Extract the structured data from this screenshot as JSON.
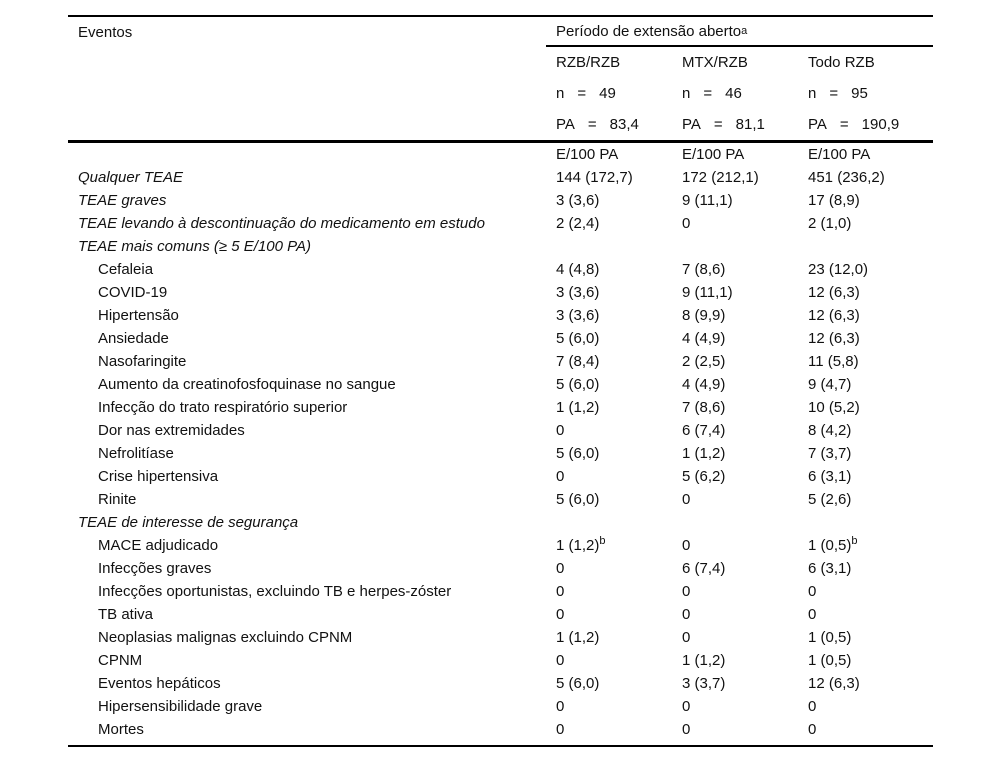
{
  "table": {
    "header": {
      "events_label": "Eventos",
      "period_label": "Período de extensão aberto",
      "period_sup": "a",
      "columns": [
        {
          "name": "RZB/RZB",
          "n": [
            "n",
            "=",
            "49"
          ],
          "pa": [
            "PA",
            "=",
            "83,4"
          ],
          "unit": "E/100 PA"
        },
        {
          "name": "MTX/RZB",
          "n": [
            "n",
            "=",
            "46"
          ],
          "pa": [
            "PA",
            "=",
            "81,1"
          ],
          "unit": "E/100 PA"
        },
        {
          "name": "Todo RZB",
          "n": [
            "n",
            "=",
            "95"
          ],
          "pa": [
            "PA",
            "=",
            "190,9"
          ],
          "unit": "E/100 PA"
        }
      ]
    },
    "rows": [
      {
        "label": "Qualquer TEAE",
        "indent": 0,
        "values": [
          "144 (172,7)",
          "172 (212,1)",
          "451 (236,2)"
        ]
      },
      {
        "label": "TEAE graves",
        "indent": 0,
        "values": [
          "3 (3,6)",
          "9 (11,1)",
          "17 (8,9)"
        ]
      },
      {
        "label": "TEAE levando à descontinuação do medicamento em estudo",
        "indent": 0,
        "values": [
          "2 (2,4)",
          "0",
          "2 (1,0)"
        ]
      },
      {
        "label": "TEAE mais comuns (≥ 5 E/100 PA)",
        "indent": 0,
        "values": [
          "",
          "",
          ""
        ]
      },
      {
        "label": "Cefaleia",
        "indent": 1,
        "values": [
          "4 (4,8)",
          "7 (8,6)",
          "23 (12,0)"
        ]
      },
      {
        "label": "COVID-19",
        "indent": 1,
        "values": [
          "3 (3,6)",
          "9 (11,1)",
          "12 (6,3)"
        ]
      },
      {
        "label": "Hipertensão",
        "indent": 1,
        "values": [
          "3 (3,6)",
          "8 (9,9)",
          "12 (6,3)"
        ]
      },
      {
        "label": "Ansiedade",
        "indent": 1,
        "values": [
          "5 (6,0)",
          "4 (4,9)",
          "12 (6,3)"
        ]
      },
      {
        "label": "Nasofaringite",
        "indent": 1,
        "values": [
          "7 (8,4)",
          "2 (2,5)",
          "11 (5,8)"
        ]
      },
      {
        "label": "Aumento da creatinofosfoquinase no sangue",
        "indent": 1,
        "values": [
          "5 (6,0)",
          "4 (4,9)",
          "9 (4,7)"
        ]
      },
      {
        "label": "Infecção do trato respiratório superior",
        "indent": 1,
        "values": [
          "1 (1,2)",
          "7 (8,6)",
          "10 (5,2)"
        ]
      },
      {
        "label": "Dor nas extremidades",
        "indent": 1,
        "values": [
          "0",
          "6 (7,4)",
          "8 (4,2)"
        ]
      },
      {
        "label": "Nefrolitíase",
        "indent": 1,
        "values": [
          "5 (6,0)",
          "1 (1,2)",
          "7 (3,7)"
        ]
      },
      {
        "label": "Crise hipertensiva",
        "indent": 1,
        "values": [
          "0",
          "5 (6,2)",
          "6 (3,1)"
        ]
      },
      {
        "label": "Rinite",
        "indent": 1,
        "values": [
          "5 (6,0)",
          "0",
          "5 (2,6)"
        ]
      },
      {
        "label": "TEAE de interesse de segurança",
        "indent": 0,
        "values": [
          "",
          "",
          ""
        ]
      },
      {
        "label": "MACE adjudicado",
        "indent": 1,
        "values": [
          {
            "text": "1 (1,2)",
            "sup": "b"
          },
          "0",
          {
            "text": "1 (0,5)",
            "sup": "b"
          }
        ]
      },
      {
        "label": "Infecções graves",
        "indent": 1,
        "values": [
          "0",
          "6 (7,4)",
          "6 (3,1)"
        ]
      },
      {
        "label": "Infecções oportunistas, excluindo TB e herpes-zóster",
        "indent": 1,
        "values": [
          "0",
          "0",
          "0"
        ]
      },
      {
        "label": "TB ativa",
        "indent": 1,
        "values": [
          "0",
          "0",
          "0"
        ]
      },
      {
        "label": "Neoplasias malignas excluindo CPNM",
        "indent": 1,
        "values": [
          "1 (1,2)",
          "0",
          "1 (0,5)"
        ]
      },
      {
        "label": "CPNM",
        "indent": 1,
        "values": [
          "0",
          "1 (1,2)",
          "1 (0,5)"
        ]
      },
      {
        "label": "Eventos hepáticos",
        "indent": 1,
        "values": [
          "5 (6,0)",
          "3 (3,7)",
          "12 (6,3)"
        ]
      },
      {
        "label": "Hipersensibilidade grave",
        "indent": 1,
        "values": [
          "0",
          "0",
          "0"
        ]
      },
      {
        "label": "Mortes",
        "indent": 1,
        "values": [
          "0",
          "0",
          "0"
        ]
      }
    ]
  },
  "colors": {
    "text": "#111111",
    "rule": "#000000",
    "background": "#ffffff"
  }
}
